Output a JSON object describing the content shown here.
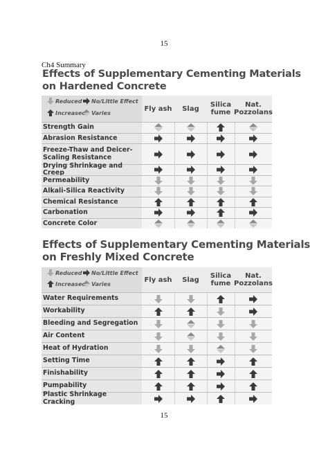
{
  "page_number_top": "15",
  "page_number_bottom": "15",
  "section_label": "Ch4 Summary",
  "legend": {
    "reduced": "Reduced",
    "no_little": "No/Little Effect",
    "increased": "Increased",
    "varies": "Varies"
  },
  "columns": [
    "Fly ash",
    "Slag",
    "Silica fume",
    "Nat. Pozzolans"
  ],
  "colors": {
    "arrow": "#3a3a3a",
    "reduced": "#a9a9a9",
    "varies_top": "#8a8a8a",
    "varies_bottom": "#c6c6c6"
  },
  "hardened": {
    "title_line1": "Effects of Supplementary Cementing Materials",
    "title_line2": "on Hardened Concrete",
    "rows": [
      {
        "label": "Strength Gain",
        "effects": [
          "varies",
          "varies",
          "increased",
          "varies"
        ]
      },
      {
        "label": "Abrasion Resistance",
        "effects": [
          "no_little",
          "no_little",
          "no_little",
          "no_little"
        ]
      },
      {
        "label": "Freeze-Thaw and Deicer-Scaling Resistance",
        "effects": [
          "no_little",
          "no_little",
          "no_little",
          "no_little"
        ]
      },
      {
        "label": "Drying Shrinkage and Creep",
        "effects": [
          "no_little",
          "no_little",
          "no_little",
          "no_little"
        ]
      },
      {
        "label": "Permeability",
        "effects": [
          "reduced",
          "reduced",
          "reduced",
          "reduced"
        ]
      },
      {
        "label": "Alkali-Silica Reactivity",
        "effects": [
          "reduced",
          "reduced",
          "reduced",
          "reduced"
        ]
      },
      {
        "label": "Chemical Resistance",
        "effects": [
          "increased",
          "increased",
          "increased",
          "increased"
        ]
      },
      {
        "label": "Carbonation",
        "effects": [
          "no_little",
          "no_little",
          "increased",
          "no_little"
        ]
      },
      {
        "label": "Concrete Color",
        "effects": [
          "varies",
          "varies",
          "varies",
          "varies"
        ]
      }
    ]
  },
  "fresh": {
    "title_line1": "Effects of Supplementary Cementing Materials",
    "title_line2": "on Freshly Mixed Concrete",
    "rows": [
      {
        "label": "Water Requirements",
        "effects": [
          "reduced",
          "reduced",
          "increased",
          "no_little"
        ]
      },
      {
        "label": "Workability",
        "effects": [
          "increased",
          "increased",
          "reduced",
          "no_little"
        ]
      },
      {
        "label": "Bleeding and Segregation",
        "effects": [
          "reduced",
          "varies",
          "reduced",
          "reduced"
        ]
      },
      {
        "label": "Air Content",
        "effects": [
          "reduced",
          "varies",
          "reduced",
          "reduced"
        ]
      },
      {
        "label": "Heat of Hydration",
        "effects": [
          "reduced",
          "reduced",
          "varies",
          "reduced"
        ]
      },
      {
        "label": "Setting Time",
        "effects": [
          "increased",
          "increased",
          "no_little",
          "increased"
        ]
      },
      {
        "label": "Finishability",
        "effects": [
          "increased",
          "increased",
          "no_little",
          "increased"
        ]
      },
      {
        "label": "Pumpability",
        "effects": [
          "increased",
          "increased",
          "no_little",
          "increased"
        ]
      },
      {
        "label": "Plastic Shrinkage Cracking",
        "effects": [
          "no_little",
          "no_little",
          "increased",
          "no_little"
        ]
      }
    ]
  }
}
